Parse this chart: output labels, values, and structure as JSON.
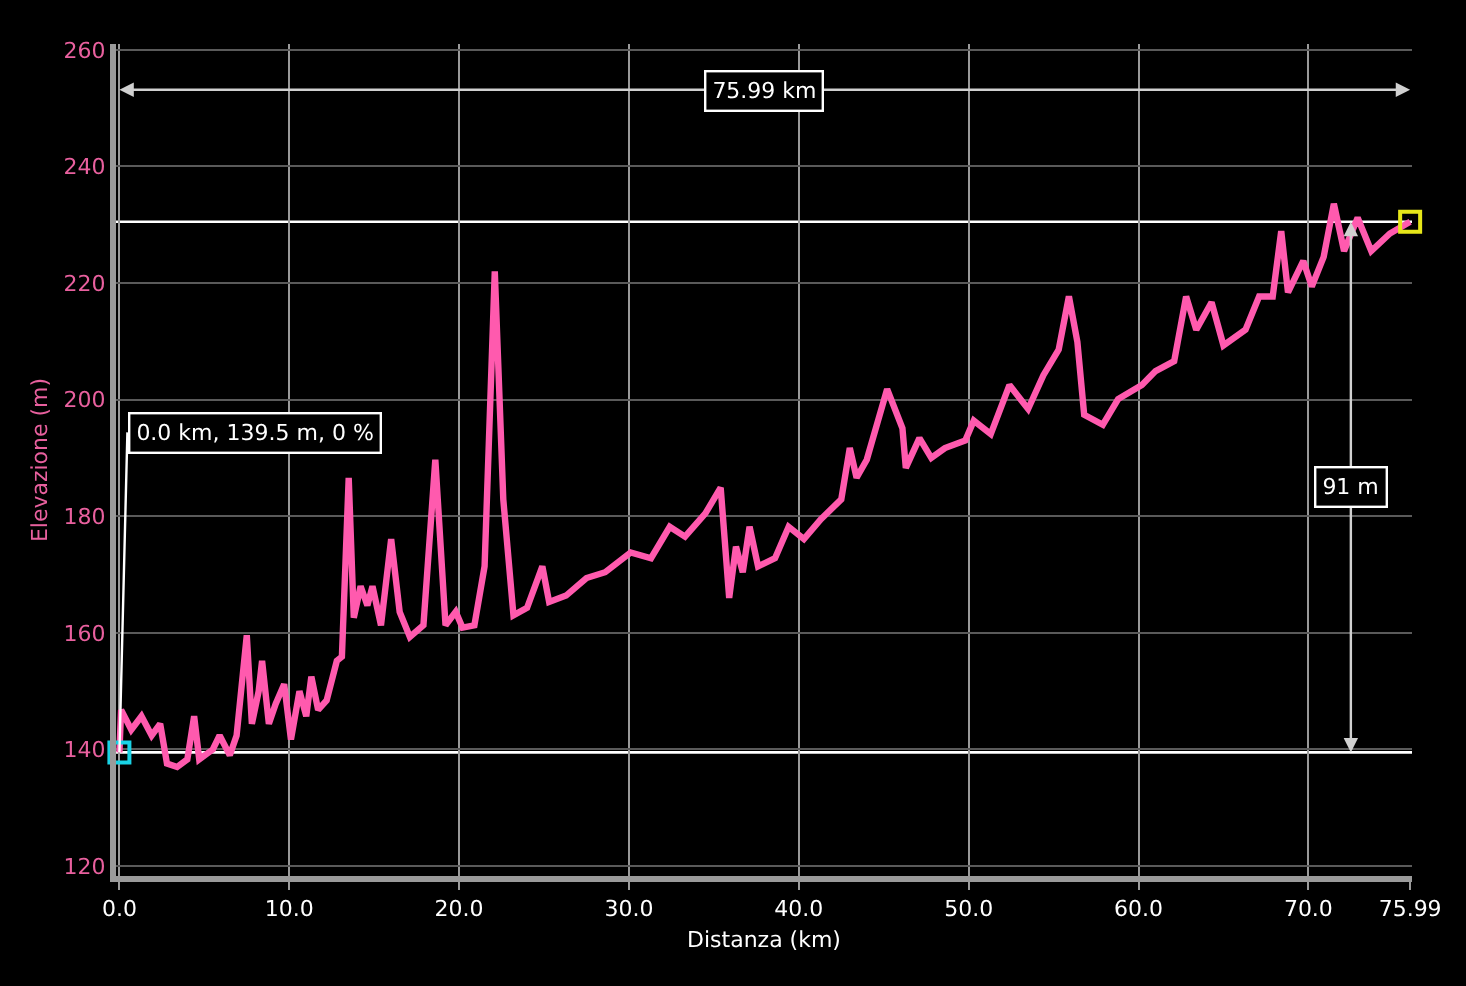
{
  "chart_data": {
    "type": "line",
    "xlabel": "Distanza (km)",
    "ylabel": "Elevazione (m)",
    "xlim": [
      -0.2,
      76.1
    ],
    "ylim": [
      118.3,
      261
    ],
    "xticks": [
      {
        "value": 0,
        "label": "0.0"
      },
      {
        "value": 10,
        "label": "10.0"
      },
      {
        "value": 20,
        "label": "20.0"
      },
      {
        "value": 30,
        "label": "30.0"
      },
      {
        "value": 40,
        "label": "40.0"
      },
      {
        "value": 50,
        "label": "50.0"
      },
      {
        "value": 60,
        "label": "60.0"
      },
      {
        "value": 70,
        "label": "70.0"
      },
      75.99
    ],
    "yticks": [
      120,
      140,
      160,
      180,
      200,
      220,
      240,
      260
    ],
    "grid": true,
    "marker": "none",
    "line_style": "solid",
    "series": [
      {
        "color": "#ff5aae",
        "x": [
          0,
          0.1,
          0.7,
          1.3,
          1.9,
          2.4,
          2.8,
          3.4,
          4.0,
          4.4,
          4.7,
          5.5,
          5.9,
          6.5,
          6.9,
          7.5,
          7.8,
          8.2,
          8.4,
          8.8,
          9.2,
          9.7,
          10.1,
          10.6,
          11.0,
          11.3,
          11.7,
          12.2,
          12.8,
          13.1,
          13.5,
          13.8,
          14.2,
          14.6,
          14.9,
          15.4,
          16.0,
          16.5,
          17.1,
          17.9,
          18.6,
          19.2,
          19.8,
          20.2,
          20.9,
          21.5,
          22.1,
          22.6,
          23.2,
          24.0,
          24.9,
          25.3,
          26.3,
          27.5,
          28.6,
          30.1,
          31.3,
          32.4,
          33.3,
          34.5,
          35.4,
          35.9,
          36.3,
          36.7,
          37.1,
          37.6,
          38.6,
          39.4,
          40.3,
          41.3,
          42.5,
          43.0,
          43.4,
          44.0,
          45.2,
          46.1,
          46.3,
          47.1,
          47.8,
          48.6,
          49.8,
          50.3,
          51.3,
          52.4,
          53.5,
          54.4,
          55.3,
          55.9,
          56.4,
          56.8,
          57.9,
          58.8,
          60.2,
          61.0,
          62.1,
          62.8,
          63.4,
          64.3,
          65.0,
          66.3,
          67.1,
          67.9,
          68.4,
          68.8,
          69.7,
          70.2,
          70.9,
          71.5,
          72.1,
          72.9,
          73.7,
          74.8,
          75.99
        ],
        "values": [
          139.5,
          146.8,
          143.4,
          145.7,
          142.4,
          144.4,
          137.6,
          137,
          138.3,
          145.7,
          138.3,
          140,
          142.4,
          139,
          142.4,
          159.6,
          144.4,
          150,
          155.2,
          144.4,
          147.8,
          151.2,
          141.7,
          150,
          145.7,
          152.5,
          146.8,
          148.4,
          155.2,
          155.9,
          186.6,
          162.6,
          168,
          164.7,
          168,
          161.3,
          176.1,
          163.6,
          159.3,
          161.3,
          189.7,
          161.3,
          163.6,
          160.9,
          161.3,
          171.4,
          222,
          182.9,
          163,
          164.3,
          171.4,
          165.3,
          166.4,
          169.4,
          170.4,
          173.8,
          172.8,
          178.2,
          176.5,
          180.5,
          184.9,
          166,
          174.8,
          170.4,
          178.2,
          171.4,
          172.8,
          178.2,
          176.1,
          179.5,
          182.9,
          191.7,
          186.6,
          189.7,
          201.8,
          195.1,
          188.3,
          193.4,
          190,
          191.7,
          193,
          196.4,
          194.1,
          202.5,
          198.4,
          204.2,
          208.6,
          217.7,
          209.9,
          197.4,
          195.7,
          200.1,
          202.5,
          204.9,
          206.6,
          217.7,
          212,
          216.7,
          209.3,
          212,
          217.7,
          217.7,
          228.9,
          218.4,
          223.8,
          219.4,
          224.5,
          233.6,
          225.5,
          231.2,
          225.5,
          228.5,
          230.5
        ]
      },
      {
        "type": "scatter",
        "marker": "square",
        "x": [
          0,
          75.99
        ],
        "values": [
          139.5,
          230.5
        ],
        "colors": [
          "#19d3e6",
          "#e6e619"
        ]
      }
    ],
    "ref_lines": [
      {
        "axis": "y",
        "value": 230.5,
        "color": "#ffffff"
      },
      {
        "axis": "y",
        "value": 139.5,
        "color": "#ffffff"
      }
    ],
    "annotations": [
      {
        "text": "0.0 km, 139.5 m, 0 %",
        "x": 0,
        "y": 139.5
      },
      "75.99 km",
      {
        "text": "91 m",
        "x": 72.5,
        "y": 185
      }
    ]
  }
}
